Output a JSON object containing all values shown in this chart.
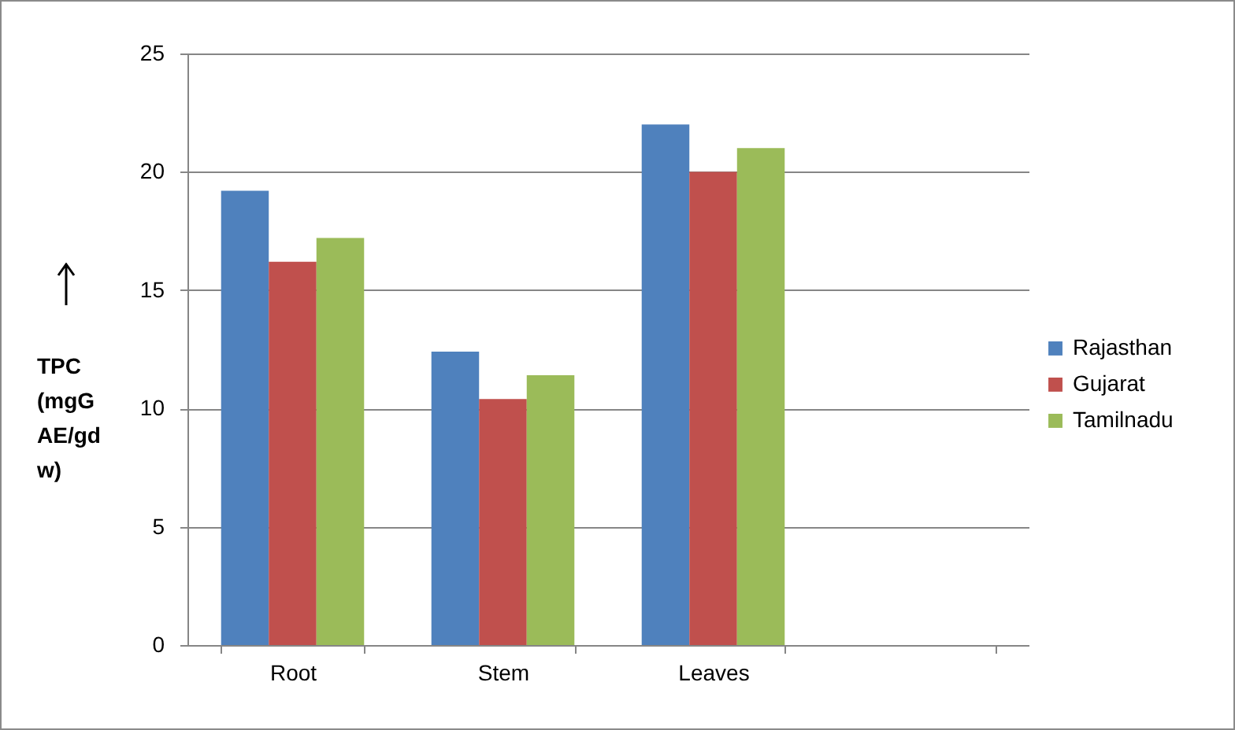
{
  "chart_data": {
    "type": "bar",
    "ylabel": "TPC (mgG AE/gd w)",
    "categories": [
      "Root",
      "Stem",
      "Leaves",
      null
    ],
    "series": [
      {
        "name": "Rajasthan",
        "color": "#4f81bd",
        "values": [
          19.2,
          12.4,
          22.0,
          null
        ]
      },
      {
        "name": "Gujarat",
        "color": "#c0504d",
        "values": [
          16.2,
          10.4,
          20.0,
          null
        ]
      },
      {
        "name": "Tamilnadu",
        "color": "#9bbb59",
        "values": [
          17.2,
          11.4,
          21.0,
          null
        ]
      }
    ],
    "ylim": [
      0,
      25
    ],
    "yticks": [
      0,
      5,
      10,
      15,
      20,
      25
    ],
    "grid": "y",
    "legend": "right"
  }
}
